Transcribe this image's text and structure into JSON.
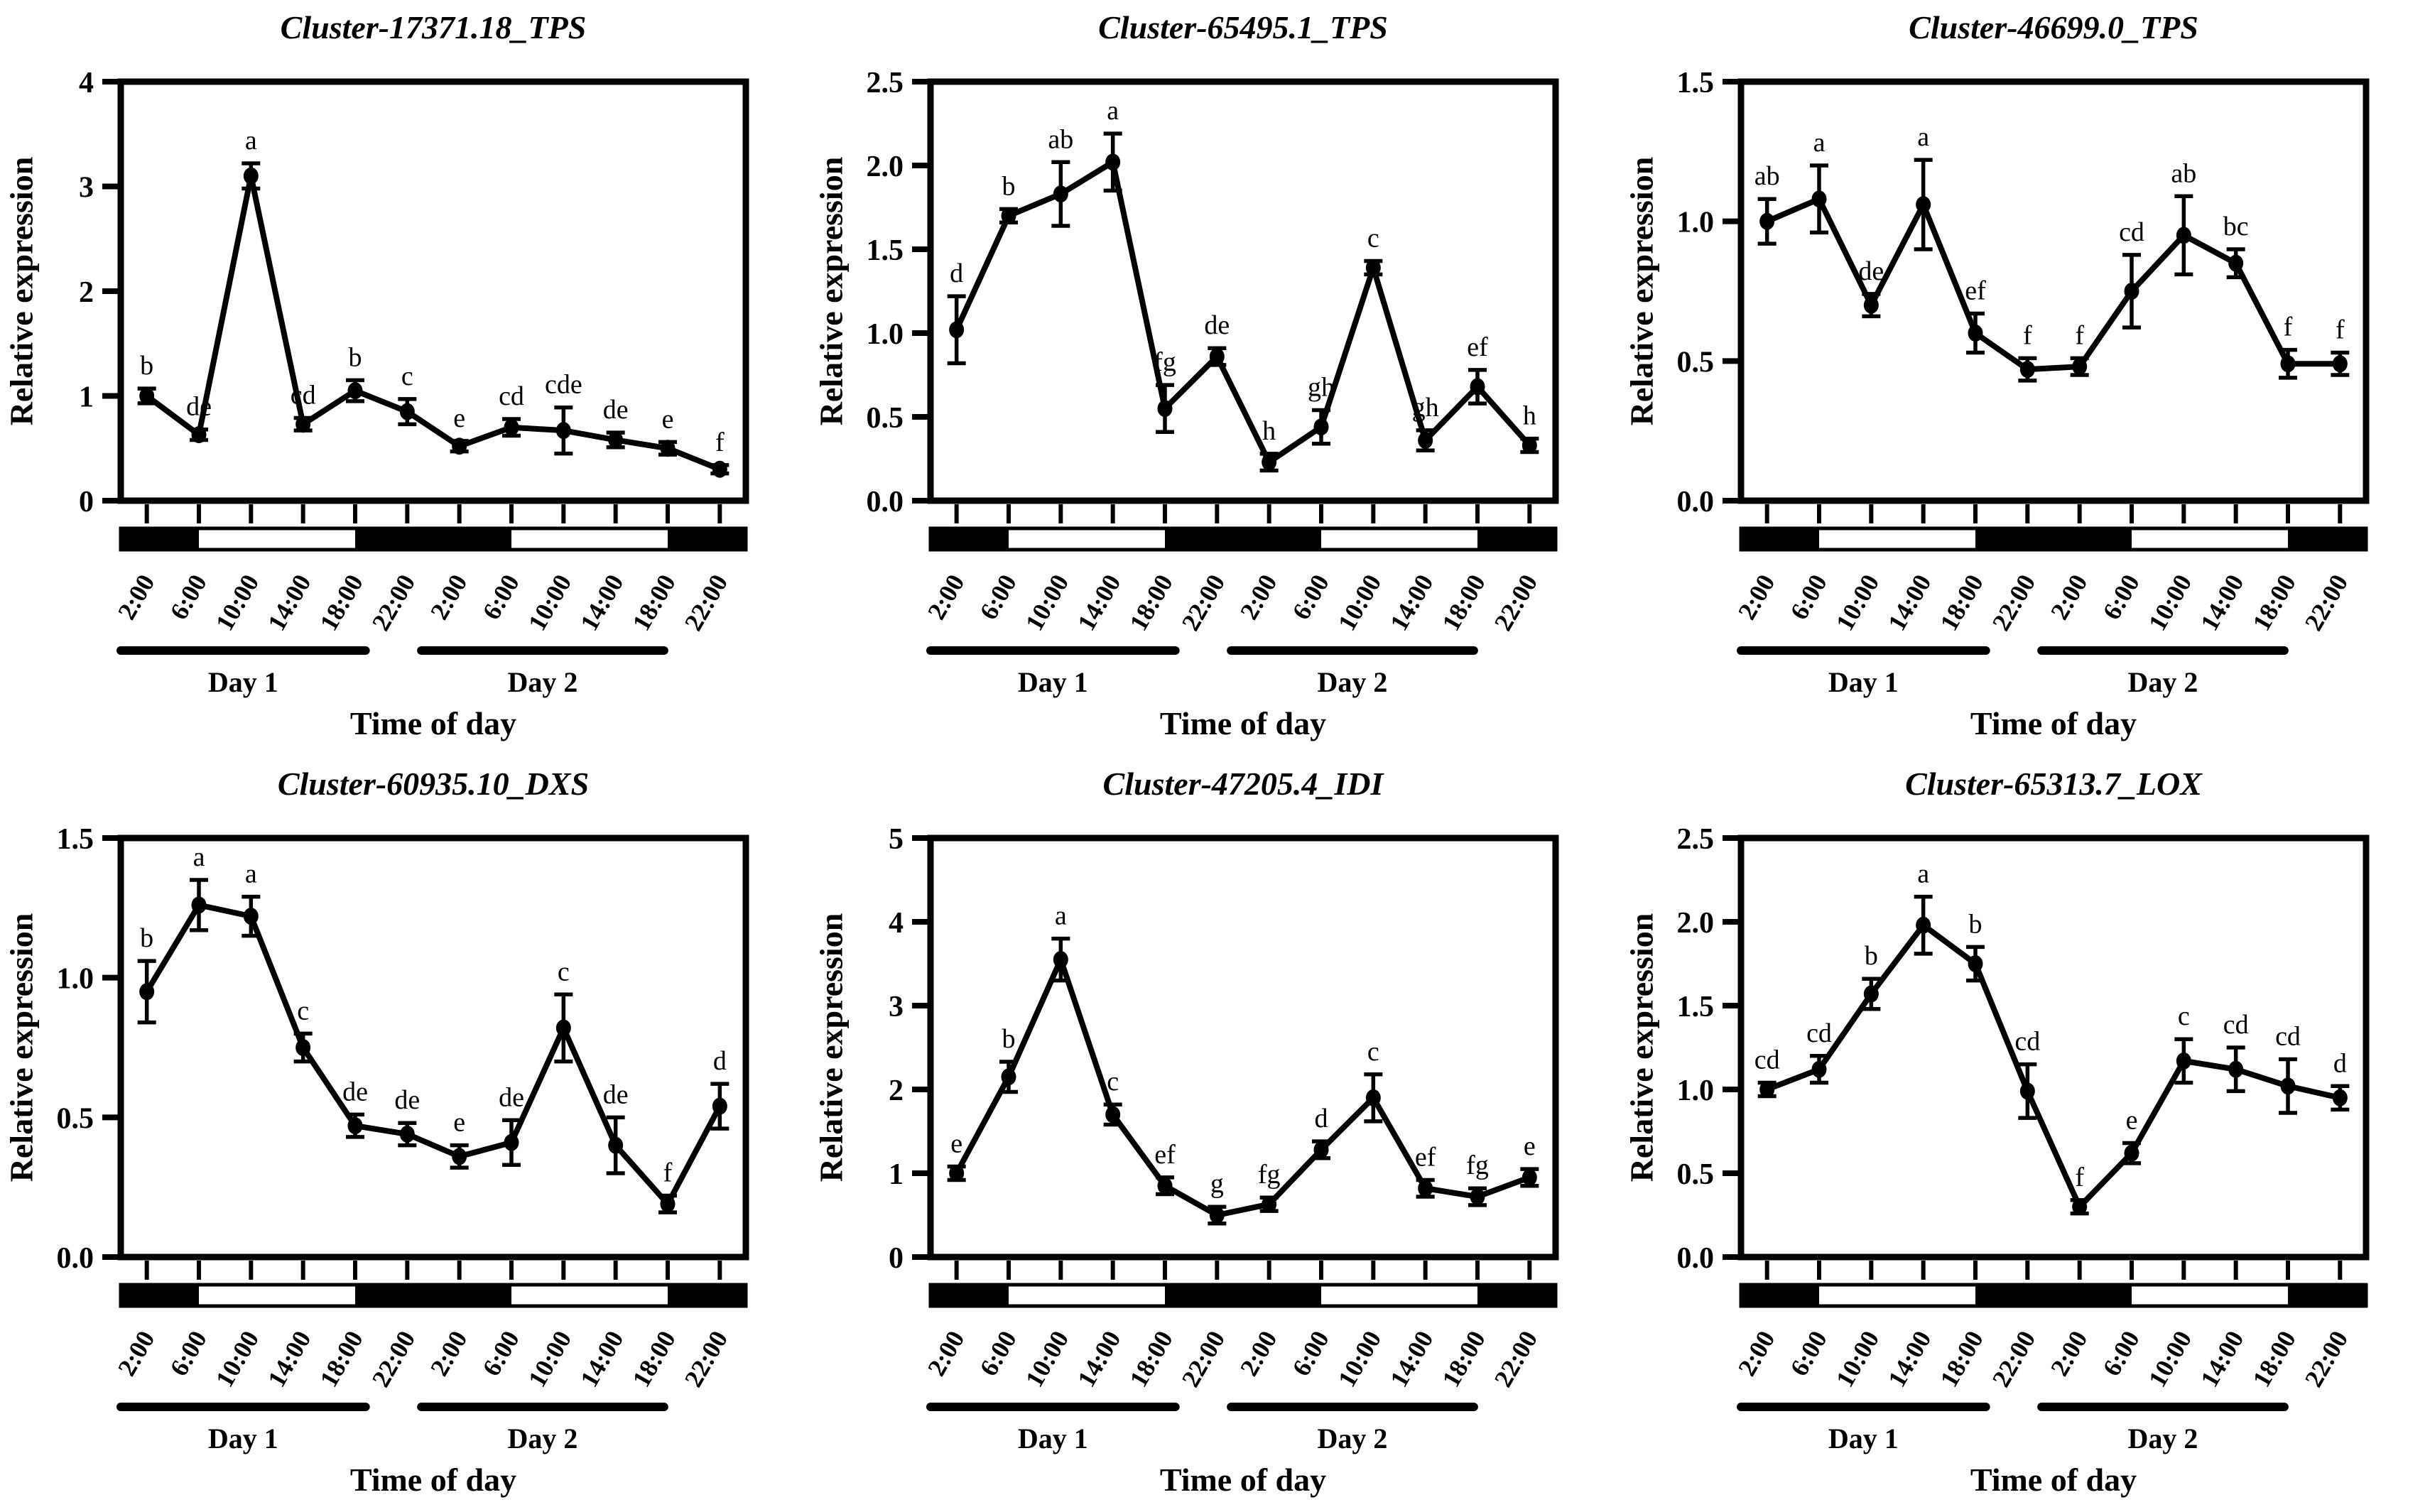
{
  "figure": {
    "background_color": "#ffffff",
    "ink_color": "#000000",
    "rows": 2,
    "cols": 3
  },
  "chart_data": [
    {
      "type": "line",
      "title": "Cluster-17371.18_TPS",
      "ylabel": "Relative expression",
      "xlabel": "Time of day",
      "categories": [
        "2:00",
        "6:00",
        "10:00",
        "14:00",
        "18:00",
        "22:00",
        "2:00",
        "6:00",
        "10:00",
        "14:00",
        "18:00",
        "22:00"
      ],
      "values": [
        1.0,
        0.63,
        3.1,
        0.73,
        1.05,
        0.85,
        0.52,
        0.7,
        0.67,
        0.58,
        0.5,
        0.3
      ],
      "errors": [
        0.07,
        0.05,
        0.12,
        0.06,
        0.1,
        0.12,
        0.05,
        0.08,
        0.22,
        0.07,
        0.06,
        0.04
      ],
      "letters": [
        "b",
        "de",
        "a",
        "cd",
        "b",
        "c",
        "e",
        "cd",
        "cde",
        "de",
        "e",
        "f"
      ],
      "ylim": [
        0,
        4
      ],
      "ytick_labels": [
        "0",
        "1",
        "2",
        "3",
        "4"
      ],
      "day_labels": [
        "Day 1",
        "Day 2"
      ],
      "night_segments": [
        [
          0,
          1.5
        ],
        [
          4.5,
          7.5
        ],
        [
          10.5,
          12
        ]
      ],
      "grid": false,
      "legend": "none",
      "line_color": "#000000"
    },
    {
      "type": "line",
      "title": "Cluster-65495.1_TPS",
      "ylabel": "Relative expression",
      "xlabel": "Time of day",
      "categories": [
        "2:00",
        "6:00",
        "10:00",
        "14:00",
        "18:00",
        "22:00",
        "2:00",
        "6:00",
        "10:00",
        "14:00",
        "18:00",
        "22:00"
      ],
      "values": [
        1.02,
        1.7,
        1.83,
        2.02,
        0.55,
        0.86,
        0.23,
        0.44,
        1.39,
        0.36,
        0.68,
        0.33
      ],
      "errors": [
        0.2,
        0.04,
        0.19,
        0.17,
        0.14,
        0.05,
        0.05,
        0.1,
        0.04,
        0.06,
        0.1,
        0.04
      ],
      "letters": [
        "d",
        "b",
        "ab",
        "a",
        "fg",
        "de",
        "h",
        "gh",
        "c",
        "gh",
        "ef",
        "h"
      ],
      "ylim": [
        0,
        2.5
      ],
      "ytick_labels": [
        "0.0",
        "0.5",
        "1.0",
        "1.5",
        "2.0",
        "2.5"
      ],
      "day_labels": [
        "Day 1",
        "Day 2"
      ],
      "night_segments": [
        [
          0,
          1.5
        ],
        [
          4.5,
          7.5
        ],
        [
          10.5,
          12
        ]
      ],
      "grid": false,
      "legend": "none",
      "line_color": "#000000"
    },
    {
      "type": "line",
      "title": "Cluster-46699.0_TPS",
      "ylabel": "Relative expression",
      "xlabel": "Time of day",
      "categories": [
        "2:00",
        "6:00",
        "10:00",
        "14:00",
        "18:00",
        "22:00",
        "2:00",
        "6:00",
        "10:00",
        "14:00",
        "18:00",
        "22:00"
      ],
      "values": [
        1.0,
        1.08,
        0.7,
        1.06,
        0.6,
        0.47,
        0.48,
        0.75,
        0.95,
        0.85,
        0.49,
        0.49
      ],
      "errors": [
        0.08,
        0.12,
        0.04,
        0.16,
        0.07,
        0.04,
        0.03,
        0.13,
        0.14,
        0.05,
        0.05,
        0.04
      ],
      "letters": [
        "ab",
        "a",
        "de",
        "a",
        "ef",
        "f",
        "f",
        "cd",
        "ab",
        "bc",
        "f",
        "f"
      ],
      "ylim": [
        0,
        1.5
      ],
      "ytick_labels": [
        "0.0",
        "0.5",
        "1.0",
        "1.5"
      ],
      "day_labels": [
        "Day 1",
        "Day 2"
      ],
      "night_segments": [
        [
          0,
          1.5
        ],
        [
          4.5,
          7.5
        ],
        [
          10.5,
          12
        ]
      ],
      "grid": false,
      "legend": "none",
      "line_color": "#000000"
    },
    {
      "type": "line",
      "title": "Cluster-60935.10_DXS",
      "ylabel": "Relative expression",
      "xlabel": "Time of day",
      "categories": [
        "2:00",
        "6:00",
        "10:00",
        "14:00",
        "18:00",
        "22:00",
        "2:00",
        "6:00",
        "10:00",
        "14:00",
        "18:00",
        "22:00"
      ],
      "values": [
        0.95,
        1.26,
        1.22,
        0.75,
        0.47,
        0.44,
        0.36,
        0.41,
        0.82,
        0.4,
        0.19,
        0.54
      ],
      "errors": [
        0.11,
        0.09,
        0.07,
        0.05,
        0.04,
        0.04,
        0.04,
        0.08,
        0.12,
        0.1,
        0.03,
        0.08
      ],
      "letters": [
        "b",
        "a",
        "a",
        "c",
        "de",
        "de",
        "e",
        "de",
        "c",
        "de",
        "f",
        "d"
      ],
      "ylim": [
        0,
        1.5
      ],
      "ytick_labels": [
        "0.0",
        "0.5",
        "1.0",
        "1.5"
      ],
      "day_labels": [
        "Day 1",
        "Day 2"
      ],
      "night_segments": [
        [
          0,
          1.5
        ],
        [
          4.5,
          7.5
        ],
        [
          10.5,
          12
        ]
      ],
      "grid": false,
      "legend": "none",
      "line_color": "#000000"
    },
    {
      "type": "line",
      "title": "Cluster-47205.4_IDI",
      "ylabel": "Relative expression",
      "xlabel": "Time of day",
      "categories": [
        "2:00",
        "6:00",
        "10:00",
        "14:00",
        "18:00",
        "22:00",
        "2:00",
        "6:00",
        "10:00",
        "14:00",
        "18:00",
        "22:00"
      ],
      "values": [
        1.0,
        2.15,
        3.55,
        1.7,
        0.85,
        0.5,
        0.63,
        1.28,
        1.9,
        0.82,
        0.72,
        0.95
      ],
      "errors": [
        0.08,
        0.18,
        0.25,
        0.12,
        0.1,
        0.1,
        0.08,
        0.1,
        0.28,
        0.1,
        0.1,
        0.1
      ],
      "letters": [
        "e",
        "b",
        "a",
        "c",
        "ef",
        "g",
        "fg",
        "d",
        "c",
        "ef",
        "fg",
        "e"
      ],
      "ylim": [
        0,
        5
      ],
      "ytick_labels": [
        "0",
        "1",
        "2",
        "3",
        "4",
        "5"
      ],
      "day_labels": [
        "Day 1",
        "Day 2"
      ],
      "night_segments": [
        [
          0,
          1.5
        ],
        [
          4.5,
          7.5
        ],
        [
          10.5,
          12
        ]
      ],
      "grid": false,
      "legend": "none",
      "line_color": "#000000"
    },
    {
      "type": "line",
      "title": "Cluster-65313.7_LOX",
      "ylabel": "Relative expression",
      "xlabel": "Time of day",
      "categories": [
        "2:00",
        "6:00",
        "10:00",
        "14:00",
        "18:00",
        "22:00",
        "2:00",
        "6:00",
        "10:00",
        "14:00",
        "18:00",
        "22:00"
      ],
      "values": [
        1.0,
        1.12,
        1.57,
        1.98,
        1.75,
        0.99,
        0.3,
        0.62,
        1.17,
        1.12,
        1.02,
        0.95
      ],
      "errors": [
        0.04,
        0.08,
        0.09,
        0.17,
        0.1,
        0.16,
        0.04,
        0.06,
        0.13,
        0.13,
        0.16,
        0.07
      ],
      "letters": [
        "cd",
        "cd",
        "b",
        "a",
        "b",
        "cd",
        "f",
        "e",
        "c",
        "cd",
        "cd",
        "d"
      ],
      "ylim": [
        0,
        2.5
      ],
      "ytick_labels": [
        "0.0",
        "0.5",
        "1.0",
        "1.5",
        "2.0",
        "2.5"
      ],
      "day_labels": [
        "Day 1",
        "Day 2"
      ],
      "night_segments": [
        [
          0,
          1.5
        ],
        [
          4.5,
          7.5
        ],
        [
          10.5,
          12
        ]
      ],
      "grid": false,
      "legend": "none",
      "line_color": "#000000"
    }
  ]
}
